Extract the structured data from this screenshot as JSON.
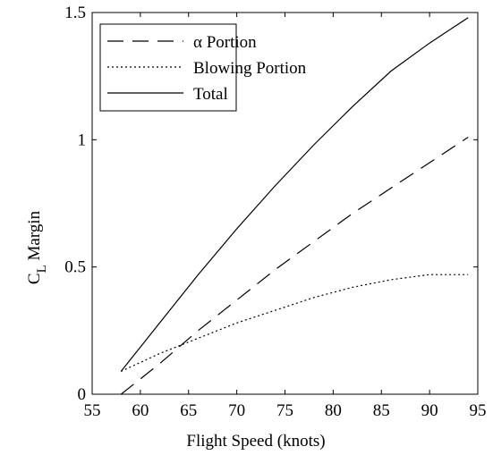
{
  "chart_data": {
    "type": "line",
    "title": "",
    "xlabel": "Flight Speed (knots)",
    "ylabel_main": "C",
    "ylabel_sub": "L",
    "ylabel_rest": " Margin",
    "xlim": [
      55,
      95
    ],
    "ylim": [
      0,
      1.5
    ],
    "xticks": [
      "55",
      "60",
      "65",
      "70",
      "75",
      "80",
      "85",
      "90",
      "95"
    ],
    "yticks": [
      "0",
      "0.5",
      "1",
      "1.5"
    ],
    "grid": false,
    "legend_position": "top-left",
    "series": [
      {
        "name": "α Portion",
        "style": "dashed",
        "x": [
          58,
          62,
          66,
          70,
          74,
          78,
          82,
          86,
          90,
          94
        ],
        "y": [
          0.0,
          0.12,
          0.25,
          0.37,
          0.49,
          0.6,
          0.71,
          0.81,
          0.91,
          1.01
        ]
      },
      {
        "name": "Blowing Portion",
        "style": "dotted",
        "x": [
          58,
          62,
          66,
          70,
          74,
          78,
          82,
          86,
          90,
          94
        ],
        "y": [
          0.09,
          0.16,
          0.22,
          0.28,
          0.33,
          0.38,
          0.42,
          0.45,
          0.47,
          0.47
        ]
      },
      {
        "name": "Total",
        "style": "solid",
        "x": [
          58,
          62,
          66,
          70,
          74,
          78,
          82,
          86,
          90,
          94
        ],
        "y": [
          0.09,
          0.28,
          0.47,
          0.65,
          0.82,
          0.98,
          1.13,
          1.27,
          1.38,
          1.48
        ]
      }
    ]
  }
}
